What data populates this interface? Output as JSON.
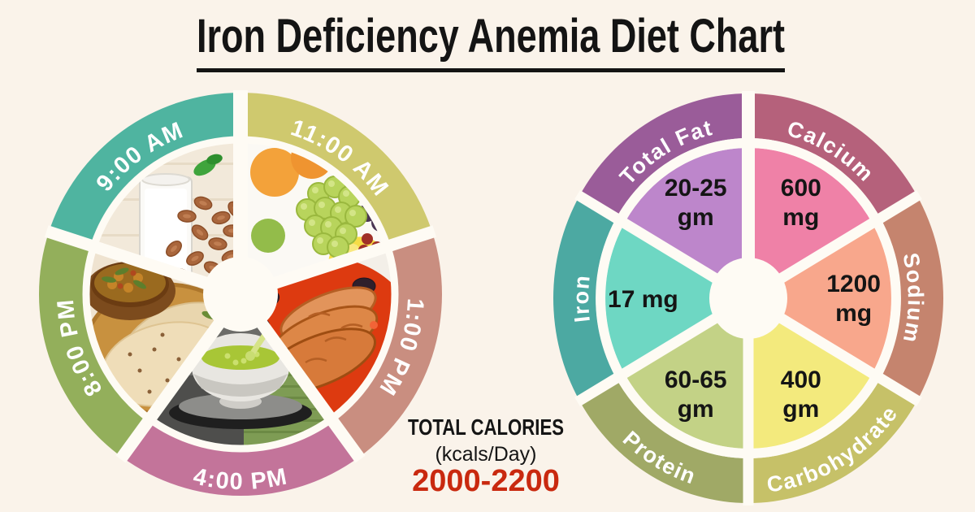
{
  "title": "Iron Deficiency Anemia Diet Chart",
  "background": "#FAF3EA",
  "calories": {
    "heading": "TOTAL CALORIES",
    "unit": "(kcals/Day)",
    "value": "2000-2200",
    "value_color": "#C9290F",
    "heading_color": "#151515"
  },
  "meal_wheel": {
    "description": "Daily meal schedule wheel with food photos",
    "label_color": "#FFFFFF",
    "segments": [
      {
        "time": "9:00 AM",
        "color": "#4FB4A0",
        "food": "milk-and-almonds"
      },
      {
        "time": "11:00 AM",
        "color": "#CFC96E",
        "food": "fresh-fruits"
      },
      {
        "time": "1:00 PM",
        "color": "#C98E80",
        "food": "fish-curry"
      },
      {
        "time": "4:00 PM",
        "color": "#C3749A",
        "food": "green-tea"
      },
      {
        "time": "8:00 PM",
        "color": "#93AF5B",
        "food": "curry-and-roti"
      }
    ]
  },
  "nutrient_wheel": {
    "label_color": "#FFFFFF",
    "value_color": "#151515",
    "segments": [
      {
        "label": "Total Fat",
        "value_line1": "20-25",
        "value_line2": "gm",
        "arc_color": "#9A5C99",
        "wedge_color": "#BD86CB"
      },
      {
        "label": "Calcium",
        "value_line1": "600",
        "value_line2": "mg",
        "arc_color": "#B5617B",
        "wedge_color": "#EF81A7"
      },
      {
        "label": "Sodium",
        "value_line1": "1200",
        "value_line2": "mg",
        "arc_color": "#C5846E",
        "wedge_color": "#F8A78C"
      },
      {
        "label": "Carbohydrate",
        "value_line1": "400",
        "value_line2": "gm",
        "arc_color": "#C6C168",
        "wedge_color": "#F3EA7D"
      },
      {
        "label": "Protein",
        "value_line1": "60-65",
        "value_line2": "gm",
        "arc_color": "#A0A966",
        "wedge_color": "#C3D286"
      },
      {
        "label": "Iron",
        "value_line1": "17 mg",
        "value_line2": "",
        "arc_color": "#4CA9A2",
        "wedge_color": "#6ED7C3"
      }
    ]
  },
  "chart_data": [
    {
      "type": "pie",
      "title": "Meal schedule wheel",
      "categories": [
        "9:00 AM",
        "11:00 AM",
        "1:00 PM",
        "4:00 PM",
        "8:00 PM"
      ],
      "values": [
        20,
        20,
        20,
        20,
        20
      ],
      "note": "Five equal 72-degree segments, clockwise from top: 11:00 AM, 1:00 PM, 4:00 PM, 8:00 PM, 9:00 AM. Inner wedges show food photos: milk and almonds, fresh fruits, fish curry, green tea, curry and roti.",
      "legend_position": "on-arc"
    },
    {
      "type": "pie",
      "title": "Daily nutrient targets",
      "categories": [
        "Total Fat",
        "Calcium",
        "Sodium",
        "Carbohydrate",
        "Protein",
        "Iron"
      ],
      "values": [
        16.67,
        16.67,
        16.67,
        16.67,
        16.67,
        16.67
      ],
      "labels": [
        "20-25 gm",
        "600 mg",
        "1200 mg",
        "400 gm",
        "60-65 gm",
        "17 mg"
      ],
      "note": "Six equal 60-degree segments, clockwise from top: Calcium, Sodium, Carbohydrate, Protein, Iron, Total Fat.",
      "legend_position": "on-arc"
    },
    {
      "type": "table",
      "title": "TOTAL CALORIES (kcals/Day)",
      "values": [
        "2000-2200"
      ]
    }
  ]
}
